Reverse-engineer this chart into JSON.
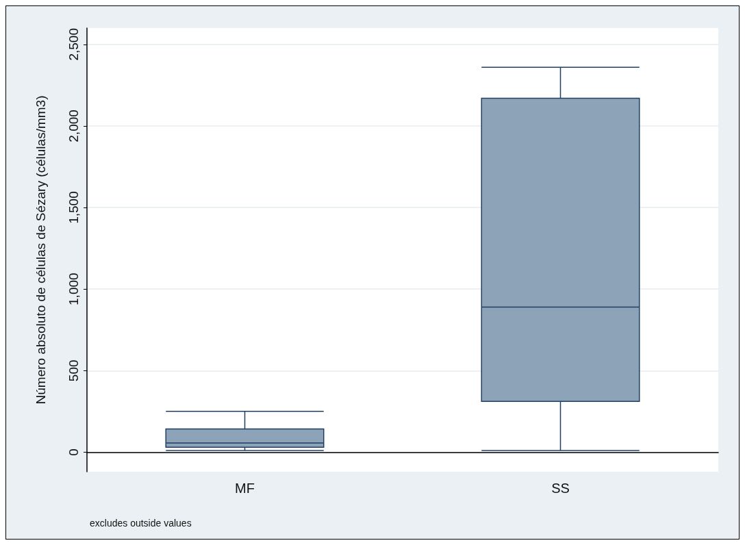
{
  "chart_data": {
    "type": "box",
    "ylabel": "Número absoluto de células de Sézary (células/mm3)",
    "categories": [
      "MF",
      "SS"
    ],
    "boxes": [
      {
        "low": 10,
        "q1": 30,
        "median": 56,
        "q3": 142,
        "high": 250
      },
      {
        "low": 10,
        "q1": 311,
        "median": 890,
        "q3": 2170,
        "high": 2360
      }
    ],
    "color": "#8ca3b8",
    "ylim": [
      -120,
      2600
    ],
    "yticks": [
      0,
      500,
      {
        "value": 1000,
        "label": "1,000"
      },
      {
        "value": 1500,
        "label": "1,500"
      },
      {
        "value": 2000,
        "label": "2,000"
      },
      {
        "value": 2500,
        "label": "2,500"
      }
    ],
    "grid": "y",
    "annotations": [
      "excludes outside values"
    ]
  }
}
